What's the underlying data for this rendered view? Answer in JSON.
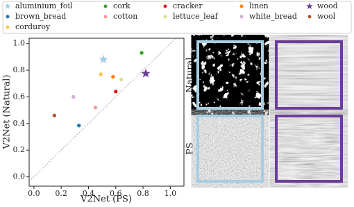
{
  "chart_data": {
    "type": "scatter",
    "xlabel": "V2Net (PS)",
    "ylabel": "V2Net (Natural)",
    "xlim": [
      -0.035,
      1.1
    ],
    "ylim": [
      -0.07,
      1.04
    ],
    "xticks": [
      {
        "value": 0,
        "label": "0.0"
      },
      {
        "value": 0.2,
        "label": "0.2"
      },
      {
        "value": 0.4,
        "label": "0.4"
      },
      {
        "value": 0.6,
        "label": "0.6"
      },
      {
        "value": 0.8,
        "label": "0.8"
      },
      {
        "value": 1,
        "label": "1.0"
      }
    ],
    "yticks": [
      {
        "value": 0,
        "label": "0.0"
      },
      {
        "value": 0.2,
        "label": "0.2"
      },
      {
        "value": 0.4,
        "label": "0.4"
      },
      {
        "value": 0.6,
        "label": "0.6"
      },
      {
        "value": 0.8,
        "label": "0.8"
      },
      {
        "value": 1,
        "label": "1.0"
      }
    ],
    "diagonal": true,
    "series": [
      {
        "name": "aluminium_foil",
        "color": "#a6cee3",
        "marker": "star",
        "x": [
          0.51
        ],
        "values": [
          0.88
        ]
      },
      {
        "name": "brown_bread",
        "color": "#1f78b4",
        "marker": "circle",
        "x": [
          0.33
        ],
        "values": [
          0.385
        ]
      },
      {
        "name": "corduroy",
        "color": "#f2c94c",
        "marker": "circle",
        "x": [
          0.49
        ],
        "values": [
          0.77
        ]
      },
      {
        "name": "cork",
        "color": "#33a02c",
        "marker": "circle",
        "x": [
          0.79
        ],
        "values": [
          0.93
        ]
      },
      {
        "name": "cotton",
        "color": "#fb9a99",
        "marker": "circle",
        "x": [
          0.45
        ],
        "values": [
          0.52
        ]
      },
      {
        "name": "cracker",
        "color": "#e31a1c",
        "marker": "circle",
        "x": [
          0.6
        ],
        "values": [
          0.64
        ]
      },
      {
        "name": "lettuce_leaf",
        "color": "#d9e08a",
        "marker": "circle",
        "x": [
          0.64
        ],
        "values": [
          0.73
        ]
      },
      {
        "name": "linen",
        "color": "#ff7f00",
        "marker": "circle",
        "x": [
          0.58
        ],
        "values": [
          0.75
        ]
      },
      {
        "name": "white_bread",
        "color": "#cab2d6",
        "marker": "circle",
        "x": [
          0.29
        ],
        "values": [
          0.6
        ]
      },
      {
        "name": "wood",
        "color": "#6a3d9a",
        "marker": "star",
        "x": [
          0.82
        ],
        "values": [
          0.775
        ]
      },
      {
        "name": "wool",
        "color": "#b15928",
        "marker": "circle",
        "x": [
          0.15
        ],
        "values": [
          0.46
        ]
      }
    ]
  },
  "panels": {
    "rows": [
      "Natural",
      "PS"
    ]
  }
}
